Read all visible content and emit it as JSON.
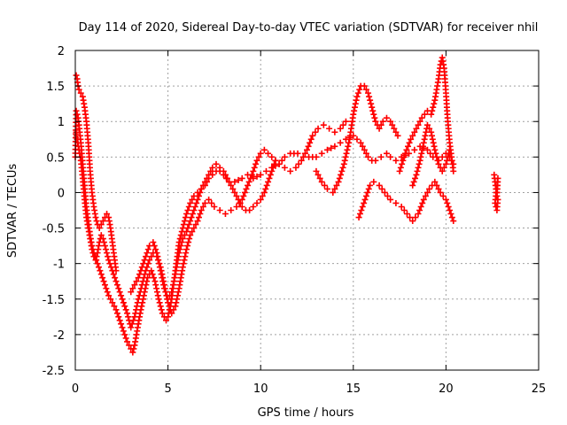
{
  "chart_data": {
    "type": "scatter",
    "title": "Day 114 of 2020, Sidereal Day-to-day VTEC variation (SDTVAR) for receiver nhil",
    "xlabel": "GPS time / hours",
    "ylabel": "SDTVAR / TECUs",
    "xlim": [
      0,
      25
    ],
    "ylim": [
      -2.5,
      2
    ],
    "xticks": [
      "0",
      "5",
      "10",
      "15",
      "20",
      "25"
    ],
    "yticks": [
      "2",
      "1.5",
      "1",
      "0.5",
      "0",
      "-0.5",
      "-1",
      "-1.5",
      "-2",
      "-2.5"
    ],
    "grid": true,
    "marker": "+",
    "color": "#ff0000",
    "series": [
      {
        "x": [
          0.0,
          0.05,
          0.1,
          0.15,
          0.2,
          0.3,
          0.4,
          0.5,
          0.6,
          0.7,
          0.8,
          0.9,
          1.0,
          1.2,
          1.4,
          1.6,
          1.8,
          2.0,
          2.2,
          2.4,
          2.6,
          2.8,
          3.0,
          3.1,
          3.2,
          3.3,
          3.5,
          3.7,
          3.9,
          4.1,
          4.3,
          4.5,
          4.7,
          4.9,
          5.0,
          5.2,
          5.4,
          5.6,
          5.8,
          6.0,
          6.2,
          6.4,
          6.6,
          6.8,
          7.0,
          7.2,
          7.4,
          7.6,
          7.8,
          8.0,
          8.3,
          8.6,
          9.0,
          9.3,
          9.6,
          10.0,
          10.3,
          10.6,
          11.0,
          11.3,
          11.6,
          12.0,
          12.3,
          12.6,
          13.0,
          13.3,
          13.6,
          14.0,
          14.3,
          14.6,
          15.0,
          15.2,
          15.4,
          15.6,
          15.8,
          16.0,
          16.2,
          16.5,
          16.8,
          17.0,
          17.3,
          17.6,
          18.0,
          18.3,
          18.6,
          19.0,
          19.3,
          19.6,
          19.8,
          20.0,
          20.2,
          20.4
        ],
        "y": [
          0.5,
          1.15,
          1.1,
          1.05,
          0.95,
          0.7,
          0.4,
          0.1,
          -0.2,
          -0.4,
          -0.6,
          -0.75,
          -0.85,
          -1.0,
          -1.15,
          -1.3,
          -1.45,
          -1.55,
          -1.65,
          -1.8,
          -1.95,
          -2.1,
          -2.2,
          -2.25,
          -2.15,
          -2.0,
          -1.7,
          -1.45,
          -1.2,
          -1.1,
          -1.25,
          -1.5,
          -1.7,
          -1.8,
          -1.75,
          -1.5,
          -1.1,
          -0.7,
          -0.5,
          -0.3,
          -0.15,
          -0.05,
          0.0,
          0.05,
          0.1,
          0.2,
          0.25,
          0.3,
          0.3,
          0.25,
          0.15,
          0.15,
          0.2,
          0.25,
          0.2,
          0.25,
          0.3,
          0.35,
          0.4,
          0.5,
          0.55,
          0.55,
          0.5,
          0.5,
          0.5,
          0.55,
          0.6,
          0.65,
          0.7,
          0.75,
          0.8,
          0.75,
          0.7,
          0.6,
          0.5,
          0.45,
          0.45,
          0.5,
          0.55,
          0.5,
          0.45,
          0.5,
          0.55,
          0.6,
          0.65,
          0.6,
          0.5,
          0.45,
          0.5,
          0.55,
          0.5,
          0.4
        ]
      },
      {
        "x": [
          0.05,
          0.1,
          0.15,
          0.2,
          0.3,
          0.4,
          0.5,
          0.6,
          0.7,
          0.8,
          0.9,
          1.0,
          1.1,
          1.2,
          1.3,
          1.4,
          1.5,
          1.6,
          1.7,
          1.8,
          1.9,
          2.0,
          2.1,
          2.2
        ],
        "y": [
          1.65,
          1.6,
          1.5,
          1.45,
          1.4,
          1.35,
          1.2,
          1.0,
          0.7,
          0.3,
          0.0,
          -0.2,
          -0.35,
          -0.45,
          -0.5,
          -0.45,
          -0.4,
          -0.35,
          -0.3,
          -0.35,
          -0.5,
          -0.7,
          -0.9,
          -1.1
        ]
      },
      {
        "x": [
          0.05,
          0.1,
          0.2,
          0.3,
          0.4,
          0.5,
          0.6,
          0.7,
          0.8,
          0.9,
          1.0,
          1.1,
          1.2,
          1.3,
          1.4,
          1.5,
          1.6,
          1.7,
          1.8,
          2.0,
          2.2,
          2.4,
          2.6,
          2.8,
          3.0,
          3.2,
          3.4,
          3.6,
          3.8,
          4.0,
          4.2,
          4.4,
          4.6,
          4.8,
          5.0,
          5.2,
          5.4,
          5.6,
          5.8,
          6.0,
          6.2,
          6.4,
          6.6,
          6.8,
          7.0
        ],
        "y": [
          0.85,
          0.75,
          0.6,
          0.45,
          0.2,
          -0.1,
          -0.35,
          -0.5,
          -0.65,
          -0.8,
          -0.9,
          -0.95,
          -0.85,
          -0.7,
          -0.6,
          -0.65,
          -0.75,
          -0.85,
          -0.95,
          -1.1,
          -1.25,
          -1.4,
          -1.55,
          -1.7,
          -1.9,
          -1.75,
          -1.5,
          -1.3,
          -1.1,
          -0.95,
          -0.85,
          -0.9,
          -1.05,
          -1.3,
          -1.55,
          -1.7,
          -1.6,
          -1.35,
          -1.05,
          -0.8,
          -0.6,
          -0.5,
          -0.4,
          -0.25,
          -0.15
        ]
      },
      {
        "x": [
          3.0,
          3.2,
          3.4,
          3.6,
          3.8,
          4.0,
          4.2,
          4.4,
          4.6,
          4.8,
          5.0,
          5.2,
          5.4,
          5.6,
          5.8,
          6.0,
          6.2,
          6.4,
          6.6,
          6.8,
          7.0,
          7.2,
          7.4,
          7.6,
          7.8,
          8.0,
          8.2,
          8.4,
          8.6,
          8.8,
          9.0,
          9.2,
          9.4,
          9.6,
          9.8,
          10.0,
          10.2,
          10.4,
          10.6,
          10.8
        ],
        "y": [
          -1.4,
          -1.3,
          -1.2,
          -1.05,
          -0.9,
          -0.75,
          -0.7,
          -0.85,
          -1.1,
          -1.35,
          -1.5,
          -1.4,
          -1.15,
          -0.85,
          -0.65,
          -0.55,
          -0.4,
          -0.25,
          -0.1,
          0.05,
          0.15,
          0.25,
          0.35,
          0.4,
          0.35,
          0.3,
          0.2,
          0.1,
          0.0,
          -0.1,
          -0.2,
          -0.25,
          -0.25,
          -0.2,
          -0.15,
          -0.1,
          0.0,
          0.15,
          0.3,
          0.45
        ]
      },
      {
        "x": [
          7.2,
          7.5,
          7.8,
          8.1,
          8.4,
          8.7,
          9.0,
          9.3,
          9.6,
          9.8,
          10.0,
          10.2,
          10.4,
          10.6,
          10.8,
          11.0,
          11.3,
          11.6,
          11.9,
          12.2,
          12.5,
          12.8,
          13.1,
          13.4,
          13.7,
          14.0,
          14.3,
          14.6
        ],
        "y": [
          -0.1,
          -0.2,
          -0.25,
          -0.3,
          -0.25,
          -0.2,
          -0.1,
          0.1,
          0.3,
          0.45,
          0.55,
          0.6,
          0.55,
          0.5,
          0.45,
          0.4,
          0.35,
          0.3,
          0.35,
          0.45,
          0.6,
          0.8,
          0.9,
          0.95,
          0.9,
          0.85,
          0.9,
          1.0
        ]
      },
      {
        "x": [
          13.0,
          13.3,
          13.6,
          13.9,
          14.2,
          14.5,
          14.8,
          15.0,
          15.2,
          15.4,
          15.6,
          15.8,
          16.0,
          16.2,
          16.4,
          16.6,
          16.8,
          17.0,
          17.2,
          17.4
        ],
        "y": [
          0.3,
          0.15,
          0.05,
          0.0,
          0.15,
          0.4,
          0.75,
          1.1,
          1.35,
          1.5,
          1.5,
          1.4,
          1.2,
          1.0,
          0.9,
          1.0,
          1.05,
          1.0,
          0.9,
          0.8
        ]
      },
      {
        "x": [
          15.3,
          15.5,
          15.7,
          15.9,
          16.1,
          16.4,
          16.7,
          17.0,
          17.3,
          17.6,
          17.9,
          18.2,
          18.5,
          18.8,
          19.1,
          19.4,
          19.7,
          20.0,
          20.2,
          20.4
        ],
        "y": [
          -0.35,
          -0.2,
          -0.05,
          0.1,
          0.15,
          0.1,
          0.0,
          -0.1,
          -0.15,
          -0.2,
          -0.3,
          -0.4,
          -0.3,
          -0.1,
          0.05,
          0.15,
          0.0,
          -0.1,
          -0.25,
          -0.4
        ]
      },
      {
        "x": [
          17.5,
          17.8,
          18.1,
          18.4,
          18.7,
          19.0,
          19.2,
          19.4,
          19.6,
          19.7,
          19.8,
          19.9,
          20.0,
          20.1,
          20.2,
          20.3,
          20.4
        ],
        "y": [
          0.3,
          0.55,
          0.75,
          0.9,
          1.05,
          1.15,
          1.1,
          1.3,
          1.6,
          1.8,
          1.9,
          1.75,
          1.4,
          1.0,
          0.7,
          0.5,
          0.3
        ]
      },
      {
        "x": [
          18.2,
          18.4,
          18.6,
          18.8,
          19.0,
          19.2,
          19.4,
          19.6,
          19.8,
          20.0,
          20.2
        ],
        "y": [
          0.1,
          0.25,
          0.45,
          0.7,
          0.95,
          0.85,
          0.6,
          0.4,
          0.3,
          0.4,
          0.6
        ]
      },
      {
        "x": [
          22.6,
          22.65,
          22.7,
          22.75,
          22.8,
          22.65,
          22.7,
          22.75,
          22.8
        ],
        "y": [
          0.25,
          0.15,
          0.05,
          -0.05,
          0.2,
          -0.15,
          -0.2,
          -0.25,
          -0.1
        ]
      }
    ]
  }
}
